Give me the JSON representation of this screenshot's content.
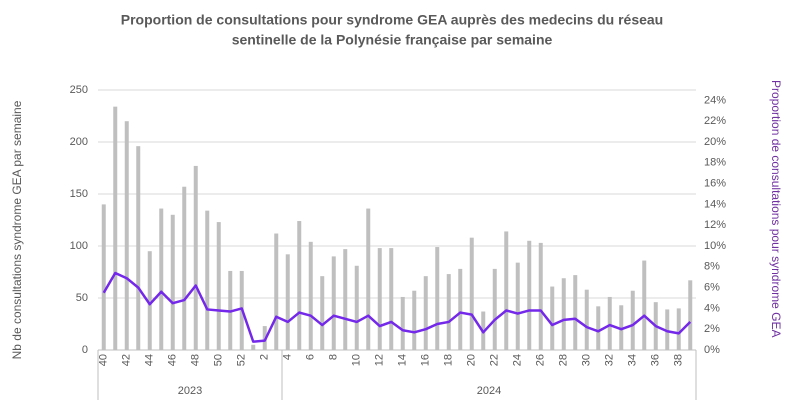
{
  "chart_data": {
    "type": "bar-line",
    "title": [
      "Proportion de consultations pour syndrome GEA auprès des medecins du réseau",
      "sentinelle de la Polynésie française par semaine"
    ],
    "ylabel": "Nb de consultations syndrome GEA par semaine",
    "y2label": "Proportion de consultations pour syndrome GEA",
    "categories": [
      "40",
      null,
      "42",
      null,
      "44",
      null,
      "46",
      null,
      "48",
      null,
      "50",
      null,
      "52",
      null,
      "2",
      null,
      "4",
      null,
      "6",
      null,
      "8",
      null,
      "10",
      null,
      "12",
      null,
      "14",
      null,
      "16",
      null,
      "18",
      null,
      "20",
      null,
      "22",
      null,
      "24",
      null,
      "26",
      null,
      "28",
      null,
      "30",
      null,
      "32",
      null,
      "34",
      null,
      "36",
      null,
      "38",
      null
    ],
    "groups": [
      {
        "label": "2023",
        "count": 16
      },
      {
        "label": "2024",
        "count": 36
      }
    ],
    "series": [
      {
        "name": "Nb de consultations syndrome GEA",
        "color": "#bfbfbf",
        "type": "bar",
        "values": [
          140,
          234,
          220,
          196,
          95,
          136,
          130,
          157,
          177,
          134,
          123,
          76,
          76,
          5,
          23,
          112,
          92,
          124,
          104,
          71,
          90,
          97,
          81,
          136,
          98,
          98,
          51,
          57,
          71,
          99,
          73,
          78,
          108,
          37,
          78,
          114,
          84,
          105,
          103,
          61,
          69,
          72,
          58,
          42,
          51,
          43,
          57,
          86,
          46,
          39,
          40,
          67
        ]
      },
      {
        "name": "Proportion",
        "color": "#7428ea",
        "type": "line",
        "axis": "y2",
        "values": [
          5.5,
          7.4,
          6.9,
          6.0,
          4.4,
          5.6,
          4.5,
          4.8,
          6.2,
          3.9,
          3.8,
          3.7,
          4.0,
          0.8,
          0.9,
          3.2,
          2.7,
          3.6,
          3.3,
          2.4,
          3.3,
          3.0,
          2.7,
          3.3,
          2.3,
          2.7,
          1.9,
          1.7,
          2.0,
          2.5,
          2.7,
          3.6,
          3.4,
          1.7,
          2.9,
          3.8,
          3.5,
          3.8,
          3.8,
          2.4,
          2.9,
          3.0,
          2.2,
          1.8,
          2.4,
          2.0,
          2.4,
          3.3,
          2.3,
          1.8,
          1.6,
          2.7
        ]
      }
    ],
    "ylim": [
      0,
      250
    ],
    "yticks": [
      0,
      50,
      100,
      150,
      200,
      250
    ],
    "y2lim": [
      0,
      25
    ],
    "y2ticks": [
      {
        "value": 0,
        "label": "0%"
      },
      {
        "value": 2,
        "label": "2%"
      },
      {
        "value": 4,
        "label": "4%"
      },
      {
        "value": 6,
        "label": "6%"
      },
      {
        "value": 8,
        "label": "8%"
      },
      {
        "value": 10,
        "label": "10%"
      },
      {
        "value": 12,
        "label": "12%"
      },
      {
        "value": 14,
        "label": "14%"
      },
      {
        "value": 16,
        "label": "16%"
      },
      {
        "value": 18,
        "label": "18%"
      },
      {
        "value": 20,
        "label": "20%"
      },
      {
        "value": 22,
        "label": "22%"
      },
      {
        "value": 24,
        "label": "24%"
      }
    ],
    "grid": true
  }
}
